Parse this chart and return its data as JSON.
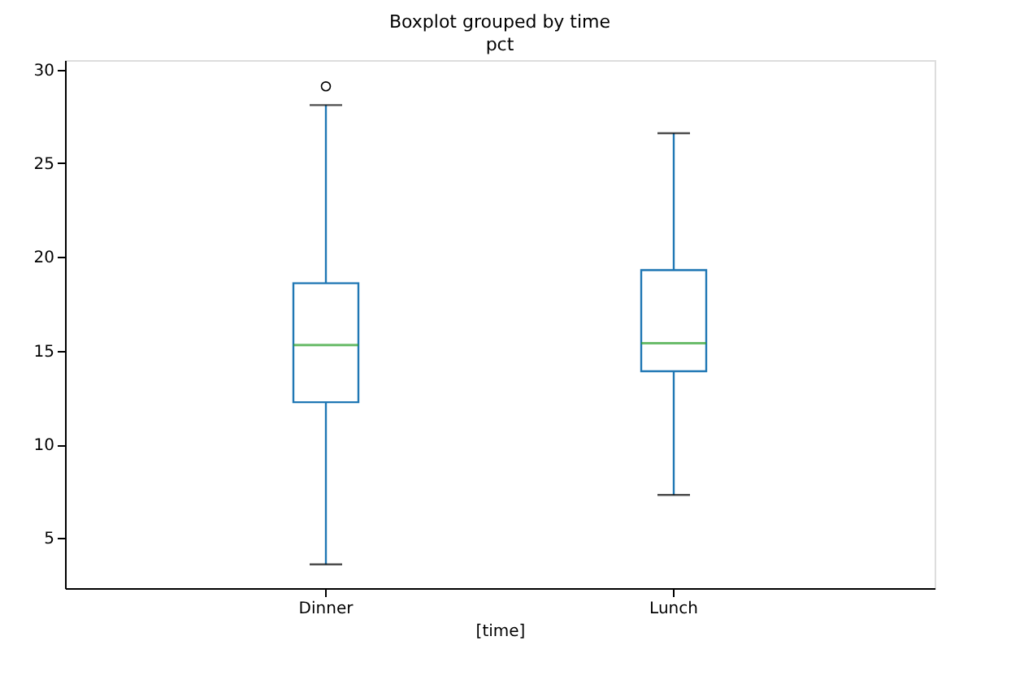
{
  "chart_data": {
    "type": "box",
    "title": "Boxplot grouped by time",
    "subtitle": "pct",
    "xlabel": "[time]",
    "categories": [
      "Dinner",
      "Lunch"
    ],
    "series": [
      {
        "color": "#1f77b4",
        "boxes": [
          {
            "low": 3.6,
            "q1": 12.25,
            "median": 15.3,
            "q3": 18.6,
            "high": 28.1,
            "outliers": [
              29.1
            ]
          },
          {
            "low": 7.3,
            "q1": 13.9,
            "median": 15.4,
            "q3": 19.3,
            "high": 26.6
          }
        ]
      }
    ],
    "ylim": [
      2.33,
      30.5
    ],
    "yticks": [
      5,
      10,
      15,
      20,
      25,
      30
    ],
    "grid": false
  }
}
